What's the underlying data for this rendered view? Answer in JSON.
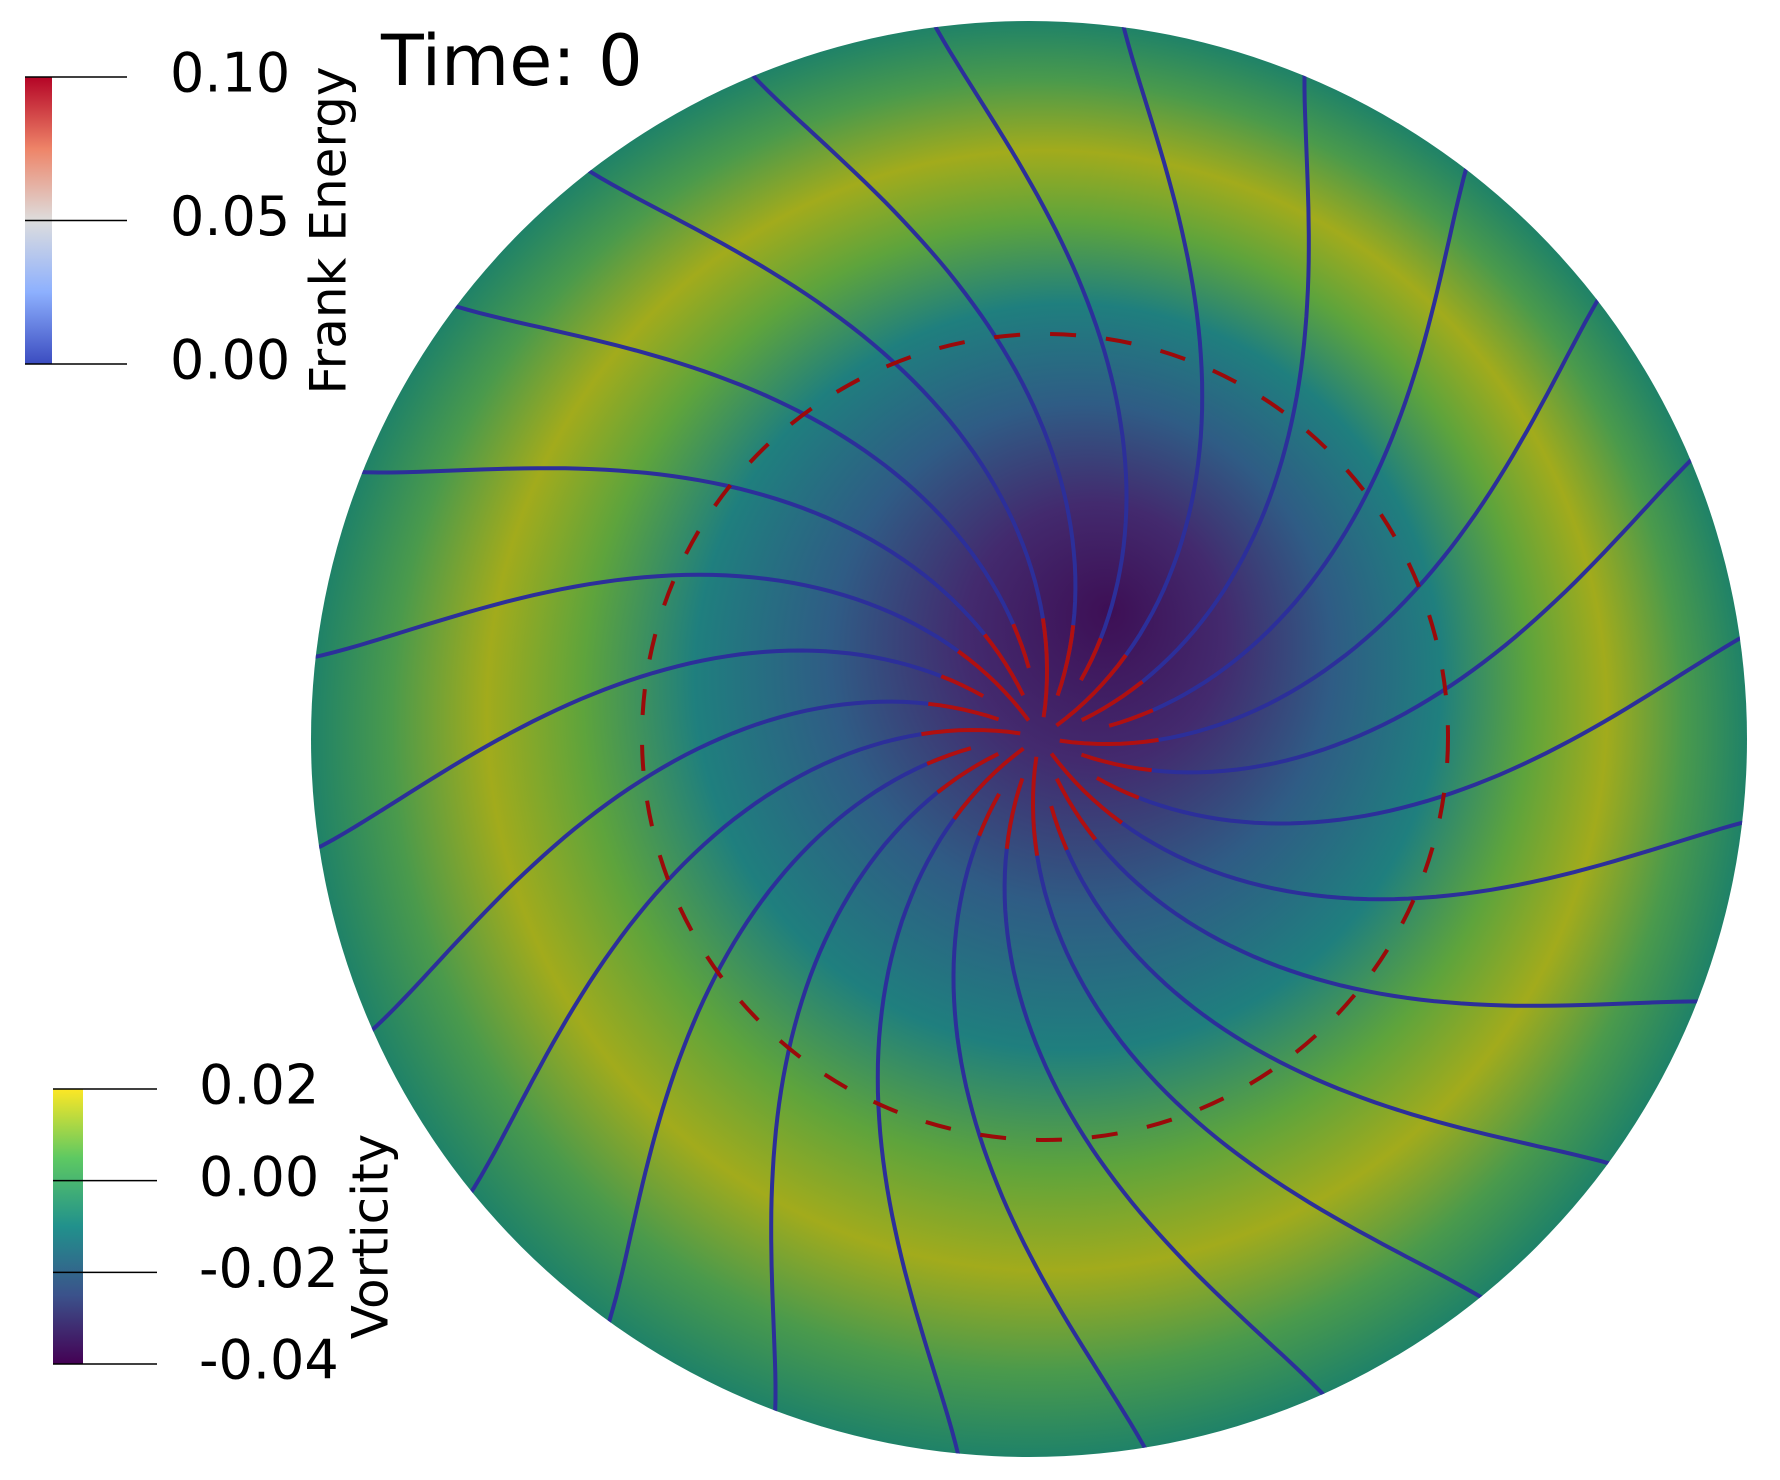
{
  "time_label": "Time: 0",
  "colorbars": [
    {
      "title": "Frank Energy",
      "range": [
        0,
        0.1
      ],
      "ticks": [
        {
          "value": 0.1,
          "label": "0.10"
        },
        {
          "value": 0.05,
          "label": "0.05"
        },
        {
          "value": 0,
          "label": "0.00"
        }
      ]
    },
    {
      "title": "Vorticity",
      "range": [
        -0.04,
        0.02
      ],
      "ticks": [
        {
          "value": 0.02,
          "label": "0.02"
        },
        {
          "value": 0,
          "label": "0.00"
        },
        {
          "value": -0.02,
          "label": "-0.02"
        },
        {
          "value": -0.04,
          "label": "-0.04"
        }
      ]
    }
  ]
}
